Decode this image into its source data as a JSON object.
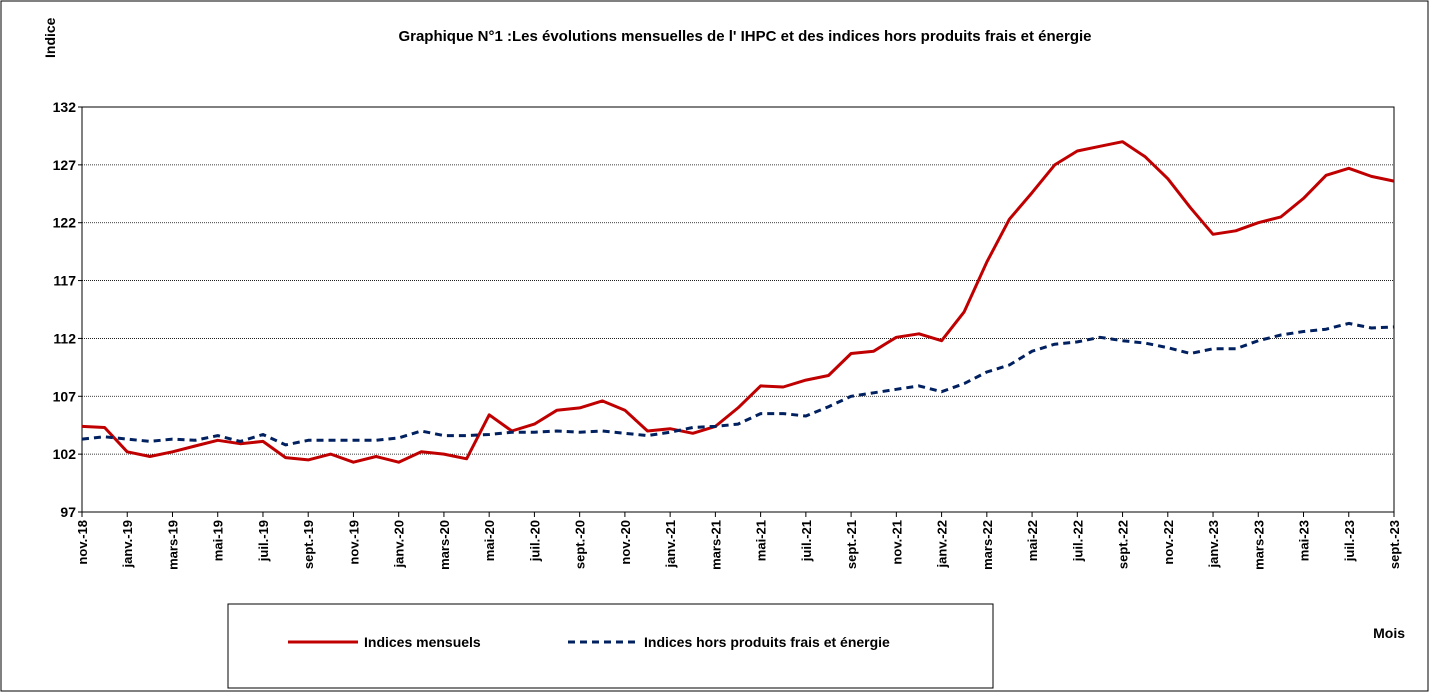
{
  "chart_data": {
    "type": "line",
    "title": "Graphique N°1 :Les évolutions mensuelles de l' IHPC et des indices  hors produits frais et énergie",
    "y_label": "Indice",
    "x_label": "Mois",
    "categories": [
      "nov.-18",
      null,
      "janv.-19",
      null,
      "mars-19",
      null,
      "mai-19",
      null,
      "juil.-19",
      null,
      "sept.-19",
      null,
      "nov.-19",
      null,
      "janv.-20",
      null,
      "mars-20",
      null,
      "mai-20",
      null,
      "juil.-20",
      null,
      "sept.-20",
      null,
      "nov.-20",
      null,
      "janv.-21",
      null,
      "mars-21",
      null,
      "mai-21",
      null,
      "juil.-21",
      null,
      "sept.-21",
      null,
      "nov.-21",
      null,
      "janv.-22",
      null,
      "mars-22",
      null,
      "mai-22",
      null,
      "juil.-22",
      null,
      "sept.-22",
      null,
      "nov.-22",
      null,
      "janv.-23",
      null,
      "mars-23",
      null,
      "mai-23",
      null,
      "juil.-23",
      null,
      "sept.-23"
    ],
    "series": [
      {
        "name": "Indices mensuels",
        "color": "#c00000",
        "dash": false,
        "values": [
          104.4,
          104.3,
          102.2,
          101.8,
          102.2,
          102.7,
          103.2,
          102.9,
          103.1,
          101.7,
          101.5,
          102.0,
          101.3,
          101.8,
          101.3,
          102.2,
          102.0,
          101.6,
          105.4,
          104.0,
          104.6,
          105.8,
          106.0,
          106.6,
          105.8,
          104.0,
          104.2,
          103.8,
          104.4,
          106.0,
          107.9,
          107.8,
          108.4,
          108.8,
          110.7,
          110.9,
          112.1,
          112.4,
          111.8,
          114.3,
          118.6,
          122.3,
          124.6,
          127.0,
          128.2,
          128.6,
          129.0,
          127.7,
          125.8,
          123.3,
          121.0,
          121.3,
          122.0,
          122.5,
          124.1,
          126.1,
          126.7,
          126.0,
          125.6
        ]
      },
      {
        "name": "Indices  hors produits frais et énergie",
        "color": "#002060",
        "dash": true,
        "values": [
          103.3,
          103.5,
          103.3,
          103.1,
          103.3,
          103.2,
          103.6,
          103.1,
          103.7,
          102.8,
          103.2,
          103.2,
          103.2,
          103.2,
          103.4,
          104.0,
          103.6,
          103.6,
          103.7,
          103.9,
          103.9,
          104.0,
          103.9,
          104.0,
          103.8,
          103.6,
          103.9,
          104.3,
          104.4,
          104.6,
          105.5,
          105.5,
          105.3,
          106.1,
          107.0,
          107.3,
          107.6,
          107.9,
          107.4,
          108.1,
          109.1,
          109.7,
          110.9,
          111.5,
          111.7,
          112.1,
          111.8,
          111.6,
          111.2,
          110.7,
          111.1,
          111.1,
          111.8,
          112.3,
          112.6,
          112.8,
          113.3,
          112.9,
          113.0
        ]
      }
    ],
    "ylim": [
      97,
      132
    ],
    "yticks": [
      97,
      102,
      107,
      112,
      117,
      122,
      127,
      132
    ],
    "grid": true
  }
}
